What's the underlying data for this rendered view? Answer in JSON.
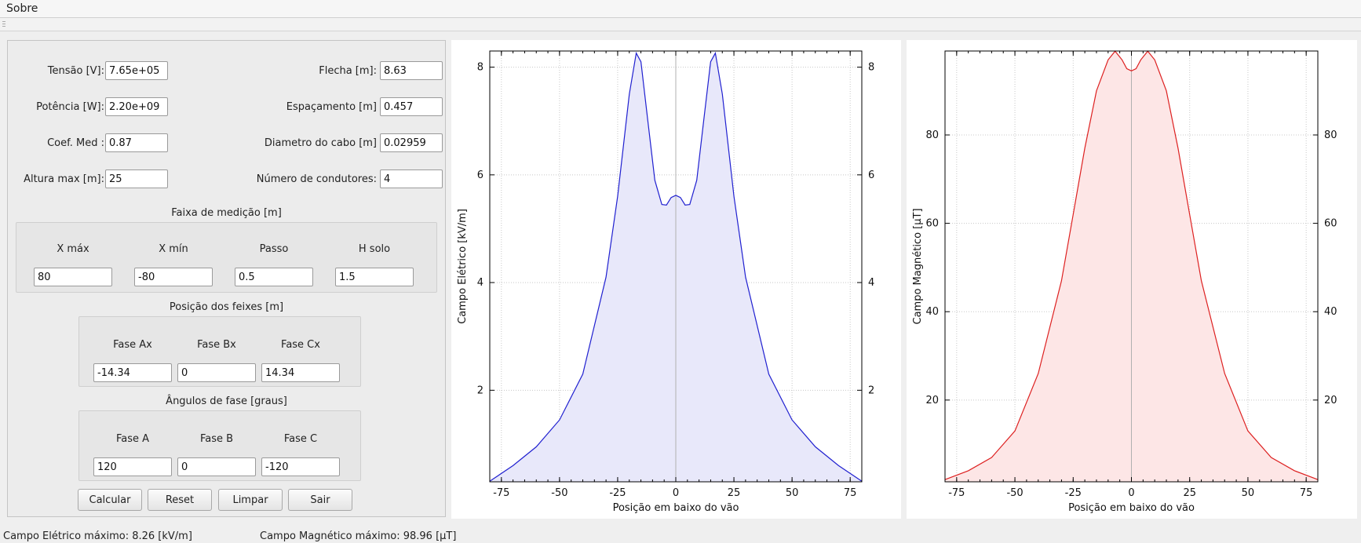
{
  "menu": {
    "about": "Sobre"
  },
  "params_left": [
    {
      "label": "Tensão [V]:",
      "value": "7.65e+05"
    },
    {
      "label": "Potência [W]:",
      "value": "2.20e+09"
    },
    {
      "label": "Coef. Med :",
      "value": "0.87"
    },
    {
      "label": "Altura max [m]:",
      "value": "25"
    }
  ],
  "params_right": [
    {
      "label": "Flecha [m]:",
      "value": "8.63"
    },
    {
      "label": "Espaçamento [m]",
      "value": "0.457"
    },
    {
      "label": "Diametro do cabo [m]",
      "value": "0.02959"
    },
    {
      "label": "Número de condutores:",
      "value": "4"
    }
  ],
  "range": {
    "title": "Faixa de medição [m]",
    "fields": [
      {
        "label": "X máx",
        "value": "80"
      },
      {
        "label": "X mín",
        "value": "-80"
      },
      {
        "label": "Passo",
        "value": "0.5"
      },
      {
        "label": "H solo",
        "value": "1.5"
      }
    ]
  },
  "beams": {
    "title": "Posição dos feixes [m]",
    "fields": [
      {
        "label": "Fase Ax",
        "value": "-14.34"
      },
      {
        "label": "Fase Bx",
        "value": "0"
      },
      {
        "label": "Fase Cx",
        "value": "14.34"
      }
    ]
  },
  "angles": {
    "title": "Ângulos de fase [graus]",
    "fields": [
      {
        "label": "Fase A",
        "value": "120"
      },
      {
        "label": "Fase B",
        "value": "0"
      },
      {
        "label": "Fase C",
        "value": "-120"
      }
    ]
  },
  "buttons": {
    "calc": "Calcular",
    "reset": "Reset",
    "clear": "Limpar",
    "exit": "Sair"
  },
  "status": {
    "electric": "Campo Elétrico máximo: 8.26 [kV/m]",
    "magnetic": "Campo Magnético máximo: 98.96 [µT]"
  },
  "chart_data": [
    {
      "type": "area",
      "xlabel": "Posição em baixo do vão",
      "ylabel": "Campo Elétrico [kV/m]",
      "xlim": [
        -80,
        80
      ],
      "ylim": [
        0.3,
        8.3
      ],
      "xticks": [
        "-75",
        "-50",
        "-25",
        "0",
        "25",
        "50",
        "75"
      ],
      "yticks": [
        "2",
        "4",
        "6",
        "8"
      ],
      "grid": true,
      "line_color": "#2020d0",
      "fill_color": "#e8e8fa",
      "x": [
        -80,
        -70,
        -60,
        -50,
        -40,
        -30,
        -25,
        -20,
        -17,
        -15,
        -12,
        -9,
        -6,
        -4,
        -2,
        0,
        2,
        4,
        6,
        9,
        12,
        15,
        17,
        20,
        25,
        30,
        40,
        50,
        60,
        70,
        80
      ],
      "y": [
        0.31,
        0.6,
        0.95,
        1.45,
        2.3,
        4.1,
        5.6,
        7.5,
        8.26,
        8.1,
        7.0,
        5.9,
        5.45,
        5.44,
        5.58,
        5.62,
        5.58,
        5.44,
        5.45,
        5.9,
        7.0,
        8.1,
        8.26,
        7.5,
        5.6,
        4.1,
        2.3,
        1.45,
        0.95,
        0.6,
        0.31
      ]
    },
    {
      "type": "area",
      "xlabel": "Posição em baixo do vão",
      "ylabel": "Campo Magnético [µT]",
      "xlim": [
        -80,
        80
      ],
      "ylim": [
        1.5,
        99
      ],
      "xticks": [
        "-75",
        "-50",
        "-25",
        "0",
        "25",
        "50",
        "75"
      ],
      "yticks": [
        "20",
        "40",
        "60",
        "80"
      ],
      "grid": true,
      "line_color": "#dd2020",
      "fill_color": "#fde6e6",
      "x": [
        -80,
        -70,
        -60,
        -50,
        -40,
        -30,
        -25,
        -20,
        -15,
        -10,
        -7,
        -4,
        -2,
        0,
        2,
        4,
        7,
        10,
        15,
        20,
        25,
        30,
        40,
        50,
        60,
        70,
        80
      ],
      "y": [
        2,
        4,
        7,
        13,
        26,
        47,
        62,
        77,
        90,
        97,
        98.96,
        97,
        95,
        94.5,
        95,
        97,
        98.96,
        97,
        90,
        77,
        62,
        47,
        26,
        13,
        7,
        4,
        2
      ]
    }
  ]
}
